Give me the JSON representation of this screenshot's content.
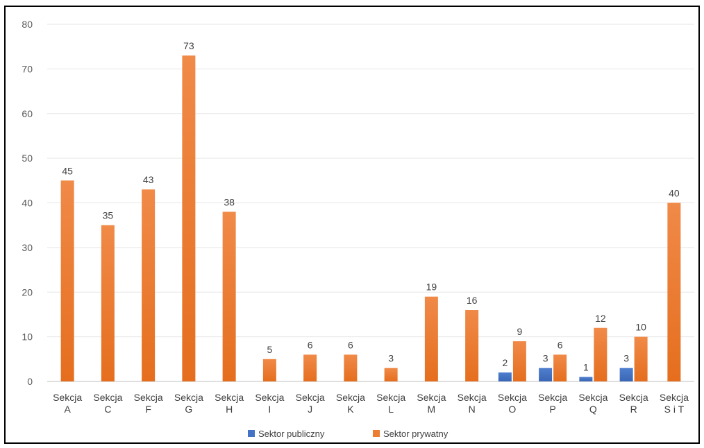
{
  "chart_data": {
    "type": "bar",
    "categories": [
      [
        "Sekcja",
        "A"
      ],
      [
        "Sekcja",
        "C"
      ],
      [
        "Sekcja",
        "F"
      ],
      [
        "Sekcja",
        "G"
      ],
      [
        "Sekcja",
        "H"
      ],
      [
        "Sekcja",
        "I"
      ],
      [
        "Sekcja",
        "J"
      ],
      [
        "Sekcja",
        "K"
      ],
      [
        "Sekcja",
        "L"
      ],
      [
        "Sekcja",
        "M"
      ],
      [
        "Sekcja",
        "N"
      ],
      [
        "Sekcja",
        "O"
      ],
      [
        "Sekcja",
        "P"
      ],
      [
        "Sekcja",
        "Q"
      ],
      [
        "Sekcja",
        "R"
      ],
      [
        "Sekcja",
        "S i T"
      ]
    ],
    "series": [
      {
        "name": "Sektor publiczny",
        "color": "#4472C4",
        "values": [
          null,
          null,
          null,
          null,
          null,
          null,
          null,
          null,
          null,
          null,
          null,
          2,
          3,
          1,
          3,
          null
        ]
      },
      {
        "name": "Sektor prywatny",
        "color": "#ED7D31",
        "values": [
          45,
          35,
          43,
          73,
          38,
          5,
          6,
          6,
          3,
          19,
          16,
          9,
          6,
          12,
          10,
          40
        ]
      }
    ],
    "ylim": [
      0,
      80
    ],
    "yticks": [
      "0",
      "10",
      "20",
      "30",
      "40",
      "50",
      "60",
      "70",
      "80"
    ],
    "grid": true,
    "legend_position": "bottom"
  }
}
